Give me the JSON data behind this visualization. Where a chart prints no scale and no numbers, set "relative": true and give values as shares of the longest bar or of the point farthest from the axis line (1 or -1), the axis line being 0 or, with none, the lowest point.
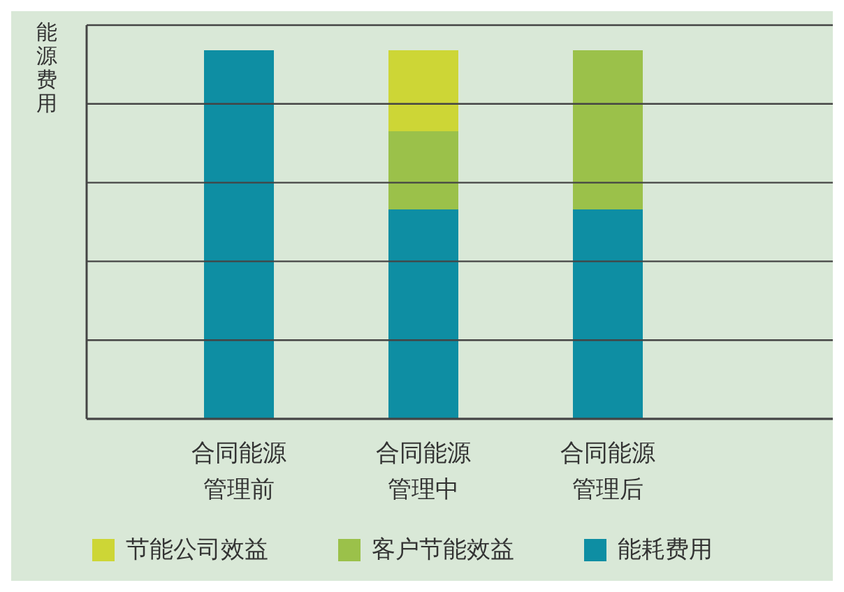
{
  "chart_data": {
    "type": "bar",
    "ylabel": "能源费用",
    "categories": [
      "合同能源管理前",
      "合同能源管理中",
      "合同能源管理后"
    ],
    "stacked": true,
    "relative": true,
    "grid": "y",
    "legend": "bottom",
    "series": [
      {
        "name": "能耗费用",
        "color": "#0e8ea3",
        "values": [
          1,
          0.568,
          0.568
        ]
      },
      {
        "name": "客户节能效益",
        "color": "#9bc14a",
        "values": [
          null,
          0.212,
          0.432
        ]
      },
      {
        "name": "节能公司效益",
        "color": "#cdd636",
        "values": [
          null,
          0.22,
          null
        ]
      }
    ]
  }
}
